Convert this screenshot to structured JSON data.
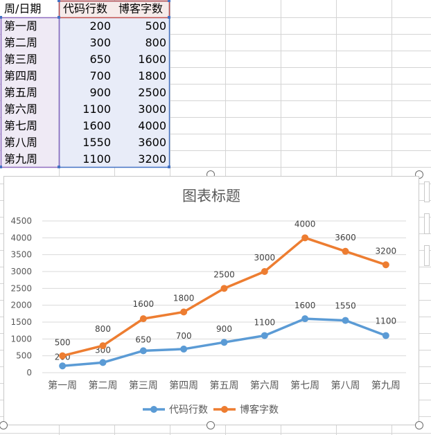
{
  "sheet": {
    "headers": [
      "周/日期",
      "代码行数",
      "博客字数"
    ],
    "rows": [
      [
        "第一周",
        "200",
        "500"
      ],
      [
        "第二周",
        "300",
        "800"
      ],
      [
        "第三周",
        "650",
        "1600"
      ],
      [
        "第四周",
        "700",
        "1800"
      ],
      [
        "第五周",
        "900",
        "2500"
      ],
      [
        "第六周",
        "1100",
        "3000"
      ],
      [
        "第七周",
        "1600",
        "4000"
      ],
      [
        "第八周",
        "1550",
        "3600"
      ],
      [
        "第九周",
        "1100",
        "3200"
      ]
    ]
  },
  "colors": {
    "series_blue": "#5b9bd5",
    "series_orange": "#ed7d31",
    "range_purple": "#8e6cbf",
    "range_blue": "#4472c4",
    "range_red": "#c0504d",
    "grid": "#d9d9d9"
  },
  "chart_data": {
    "type": "line",
    "title": "图表标题",
    "categories": [
      "第一周",
      "第二周",
      "第三周",
      "第四周",
      "第五周",
      "第六周",
      "第七周",
      "第八周",
      "第九周"
    ],
    "series": [
      {
        "name": "代码行数",
        "values": [
          200,
          300,
          650,
          700,
          900,
          1100,
          1600,
          1550,
          1100
        ],
        "color": "#5b9bd5"
      },
      {
        "name": "博客字数",
        "values": [
          500,
          800,
          1600,
          1800,
          2500,
          3000,
          4000,
          3600,
          3200
        ],
        "color": "#ed7d31"
      }
    ],
    "ylim": [
      0,
      4500
    ],
    "yticks": [
      0,
      500,
      1000,
      1500,
      2000,
      2500,
      3000,
      3500,
      4000,
      4500
    ],
    "grid": true,
    "legend": "bottom",
    "data_labels": true
  }
}
